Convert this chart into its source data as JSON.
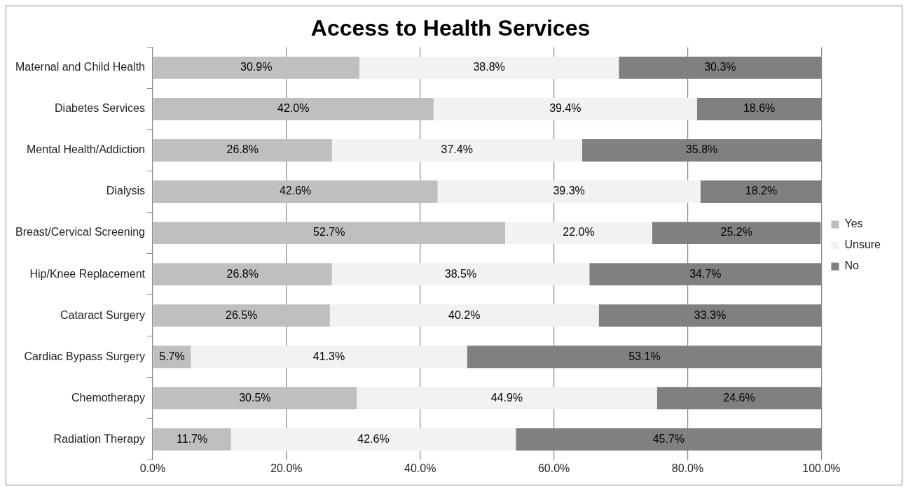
{
  "chart_data": {
    "type": "bar",
    "orientation": "horizontal",
    "stacked": true,
    "title": "Access to Health Services",
    "categories": [
      "Maternal and Child Health",
      "Diabetes Services",
      "Mental Health/Addiction",
      "Dialysis",
      "Breast/Cervical Screening",
      "Hip/Knee Replacement",
      "Cataract Surgery",
      "Cardiac Bypass Surgery",
      "Chemotherapy",
      "Radiation Therapy"
    ],
    "series": [
      {
        "name": "Yes",
        "color": "#bfbfbf",
        "values": [
          30.9,
          42.0,
          26.8,
          42.6,
          52.7,
          26.8,
          26.5,
          5.7,
          30.5,
          11.7
        ],
        "value_labels": [
          "30.9%",
          "42.0%",
          "26.8%",
          "42.6%",
          "52.7%",
          "26.8%",
          "26.5%",
          "5.7%",
          "30.5%",
          "11.7%"
        ]
      },
      {
        "name": "Unsure",
        "color": "#f2f2f2",
        "values": [
          38.8,
          39.4,
          37.4,
          39.3,
          22.0,
          38.5,
          40.2,
          41.3,
          44.9,
          42.6
        ],
        "value_labels": [
          "38.8%",
          "39.4%",
          "37.4%",
          "39.3%",
          "22.0%",
          "38.5%",
          "40.2%",
          "41.3%",
          "44.9%",
          "42.6%"
        ]
      },
      {
        "name": "No",
        "color": "#808080",
        "values": [
          30.3,
          18.6,
          35.8,
          18.2,
          25.2,
          34.7,
          33.3,
          53.1,
          24.6,
          45.7
        ],
        "value_labels": [
          "30.3%",
          "18.6%",
          "35.8%",
          "18.2%",
          "25.2%",
          "34.7%",
          "33.3%",
          "53.1%",
          "24.6%",
          "45.7%"
        ]
      }
    ],
    "xlim": [
      0,
      100
    ],
    "xticks": [
      {
        "value": 0,
        "label": "0.0%"
      },
      {
        "value": 20,
        "label": "20.0%"
      },
      {
        "value": 40,
        "label": "40.0%"
      },
      {
        "value": 60,
        "label": "60.0%"
      },
      {
        "value": 80,
        "label": "80.0%"
      },
      {
        "value": 100,
        "label": "100.0%"
      }
    ],
    "grid": "x",
    "legend": "right"
  }
}
